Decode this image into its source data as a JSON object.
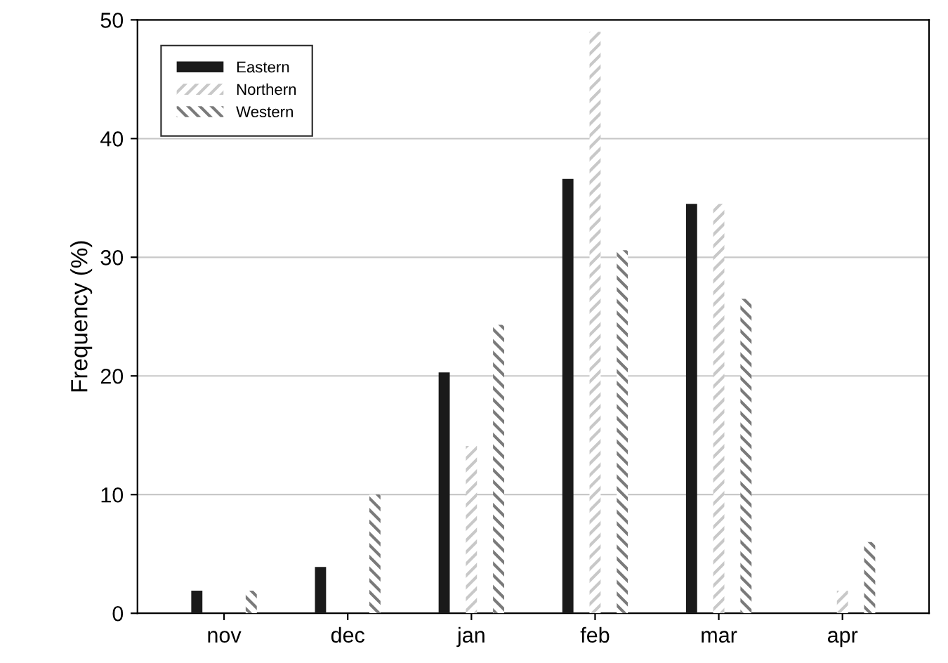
{
  "chart_data": {
    "type": "bar",
    "ylabel": "Frequency (%)",
    "categories": [
      "nov",
      "dec",
      "jan",
      "feb",
      "mar",
      "apr"
    ],
    "series": [
      {
        "name": "Eastern",
        "color": "#1a1a1a",
        "values": [
          1.9,
          3.9,
          20.3,
          36.6,
          34.5,
          0
        ]
      },
      {
        "name": "Northern",
        "color": "#c8c8c8",
        "values": [
          0,
          0,
          14.1,
          49,
          34.5,
          1.9
        ]
      },
      {
        "name": "Western",
        "color": "#7a7a7a",
        "values": [
          1.9,
          10,
          24.3,
          30.6,
          26.5,
          6
        ]
      }
    ],
    "ylim": [
      0,
      50
    ],
    "yticks": [
      0,
      10,
      20,
      30,
      40,
      50
    ],
    "grid": "y",
    "legend": "top left"
  }
}
